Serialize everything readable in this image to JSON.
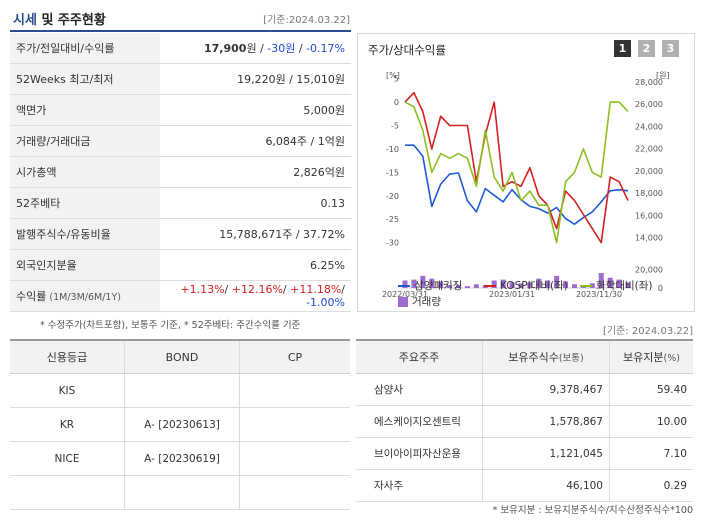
{
  "header": {
    "title_part1": "시세",
    "title_part2": " 및 주주현황",
    "base_date": "[기준:2024.03.22]"
  },
  "quote_rows": [
    {
      "label": "주가/전일대비/수익률",
      "value_parts": [
        {
          "text": "17,900",
          "style": "bold"
        },
        {
          "text": "원 / ",
          "style": "plain"
        },
        {
          "text": "-30원",
          "style": "neg"
        },
        {
          "text": " / ",
          "style": "plain"
        },
        {
          "text": "-0.17%",
          "style": "neg"
        }
      ]
    },
    {
      "label": "52Weeks 최고/최저",
      "value": "19,220원 / 15,010원"
    },
    {
      "label": "액면가",
      "value": "5,000원"
    },
    {
      "label": "거래량/거래대금",
      "value": "6,084주 / 1억원"
    },
    {
      "label": "시가총액",
      "value": "2,826억원"
    },
    {
      "label": "52주베타",
      "value": "0.13"
    },
    {
      "label": "발행주식수/유동비율",
      "value": "15,788,671주 / 37.72%"
    },
    {
      "label": "외국인지분율",
      "value": "6.25%"
    },
    {
      "label": "수익률",
      "label_sub": "(1M/3M/6M/1Y)",
      "value_parts": [
        {
          "text": "+1.13%",
          "style": "pos"
        },
        {
          "text": "/ ",
          "style": "plain"
        },
        {
          "text": "+12.16%",
          "style": "pos"
        },
        {
          "text": "/ ",
          "style": "plain"
        },
        {
          "text": "+11.18%",
          "style": "pos"
        },
        {
          "text": "/ ",
          "style": "plain"
        },
        {
          "text": "-1.00%",
          "style": "neg"
        }
      ]
    }
  ],
  "quote_footnote": "* 수정주가(차트포함), 보통주 기준, * 52주베타: 주간수익률 기준",
  "chart_panel": {
    "title": "주가/상대수익률",
    "tabs": [
      "1",
      "2",
      "3"
    ],
    "active_tab": 0,
    "colors": {
      "stock": "#1f5bd6",
      "kospi": "#d62020",
      "chem": "#8cc020",
      "volume": "#9e6bd0",
      "tab_active": "#333333",
      "tab_inactive": "#b0b0b0"
    }
  },
  "chart_data": {
    "type": "line",
    "x_tick_labels": [
      "2022/03/31",
      "2023/01/31",
      "2023/11/30"
    ],
    "left_axis": {
      "unit": "[%]",
      "ticks": [
        5,
        0,
        -5,
        -10,
        -15,
        -20,
        -25,
        -30
      ],
      "range": [
        -32,
        6
      ]
    },
    "right_axis": {
      "unit": "[원]",
      "ticks": [
        28000,
        26000,
        24000,
        22000,
        20000,
        18000,
        16000,
        14000
      ],
      "range": [
        12700,
        28700
      ]
    },
    "volume_axis": {
      "ticks": [
        20000,
        0
      ],
      "range": [
        0,
        30000
      ]
    },
    "series": [
      {
        "name": "삼양패키징",
        "axis": "right",
        "values": [
          22300,
          22300,
          21300,
          16800,
          18800,
          19700,
          19800,
          17300,
          16300,
          18400,
          17800,
          17200,
          18300,
          17400,
          16800,
          16600,
          16200,
          16700,
          15700,
          15200,
          15800,
          16300,
          17200,
          18200,
          18300,
          18200
        ]
      },
      {
        "name": "KOSPI대비(좌)",
        "axis": "left",
        "values": [
          0,
          2,
          -2,
          -10,
          -3,
          -5,
          -5,
          -5,
          -17,
          -7,
          0,
          -18,
          -17,
          -18,
          -14,
          -20,
          -22,
          -27,
          -19,
          -21,
          -24,
          -27,
          -30,
          -16,
          -17,
          -21
        ]
      },
      {
        "name": "화학대비(좌)",
        "axis": "left",
        "values": [
          0,
          -1,
          -6,
          -15,
          -11,
          -12,
          -11,
          -12,
          -18,
          -6,
          -16,
          -19,
          -15,
          -21,
          -19,
          -22,
          -22,
          -30,
          -17,
          -15,
          -10,
          -15,
          -16,
          0,
          0,
          -2
        ]
      }
    ],
    "volume": {
      "name": "거래량",
      "values": [
        8000,
        9000,
        13000,
        10000,
        7000,
        3000,
        3000,
        2000,
        4000,
        3000,
        8000,
        9000,
        6000,
        5000,
        6000,
        10000,
        8000,
        13000,
        7000,
        4000,
        3000,
        5000,
        16000,
        11000,
        9000,
        6000
      ]
    }
  },
  "legend": {
    "stock": "삼양패키징",
    "kospi": "KOSPI대비(좌)",
    "chem": "화학대비(좌)",
    "volume": "거래량"
  },
  "base_date_2": "[기준: 2024.03.22]",
  "credit": {
    "headers": [
      "신용등급",
      "BOND",
      "CP"
    ],
    "rows": [
      [
        "KIS",
        "",
        ""
      ],
      [
        "KR",
        "A-  [20230613]",
        ""
      ],
      [
        "NICE",
        "A-  [20230619]",
        ""
      ],
      [
        "",
        "",
        ""
      ]
    ]
  },
  "holders": {
    "headers": [
      "주요주주",
      "보유주식수",
      "(보통)",
      "보유지분",
      "(%)"
    ],
    "rows": [
      [
        "삼양사",
        "9,378,467",
        "59.40"
      ],
      [
        "에스케이지오센트릭",
        "1,578,867",
        "10.00"
      ],
      [
        "브이아이피자산운용",
        "1,121,045",
        "7.10"
      ],
      [
        "자사주",
        "46,100",
        "0.29"
      ]
    ]
  },
  "holders_footnote": "* 보유지분 : 보유지분주식수/지수산정주식수*100"
}
